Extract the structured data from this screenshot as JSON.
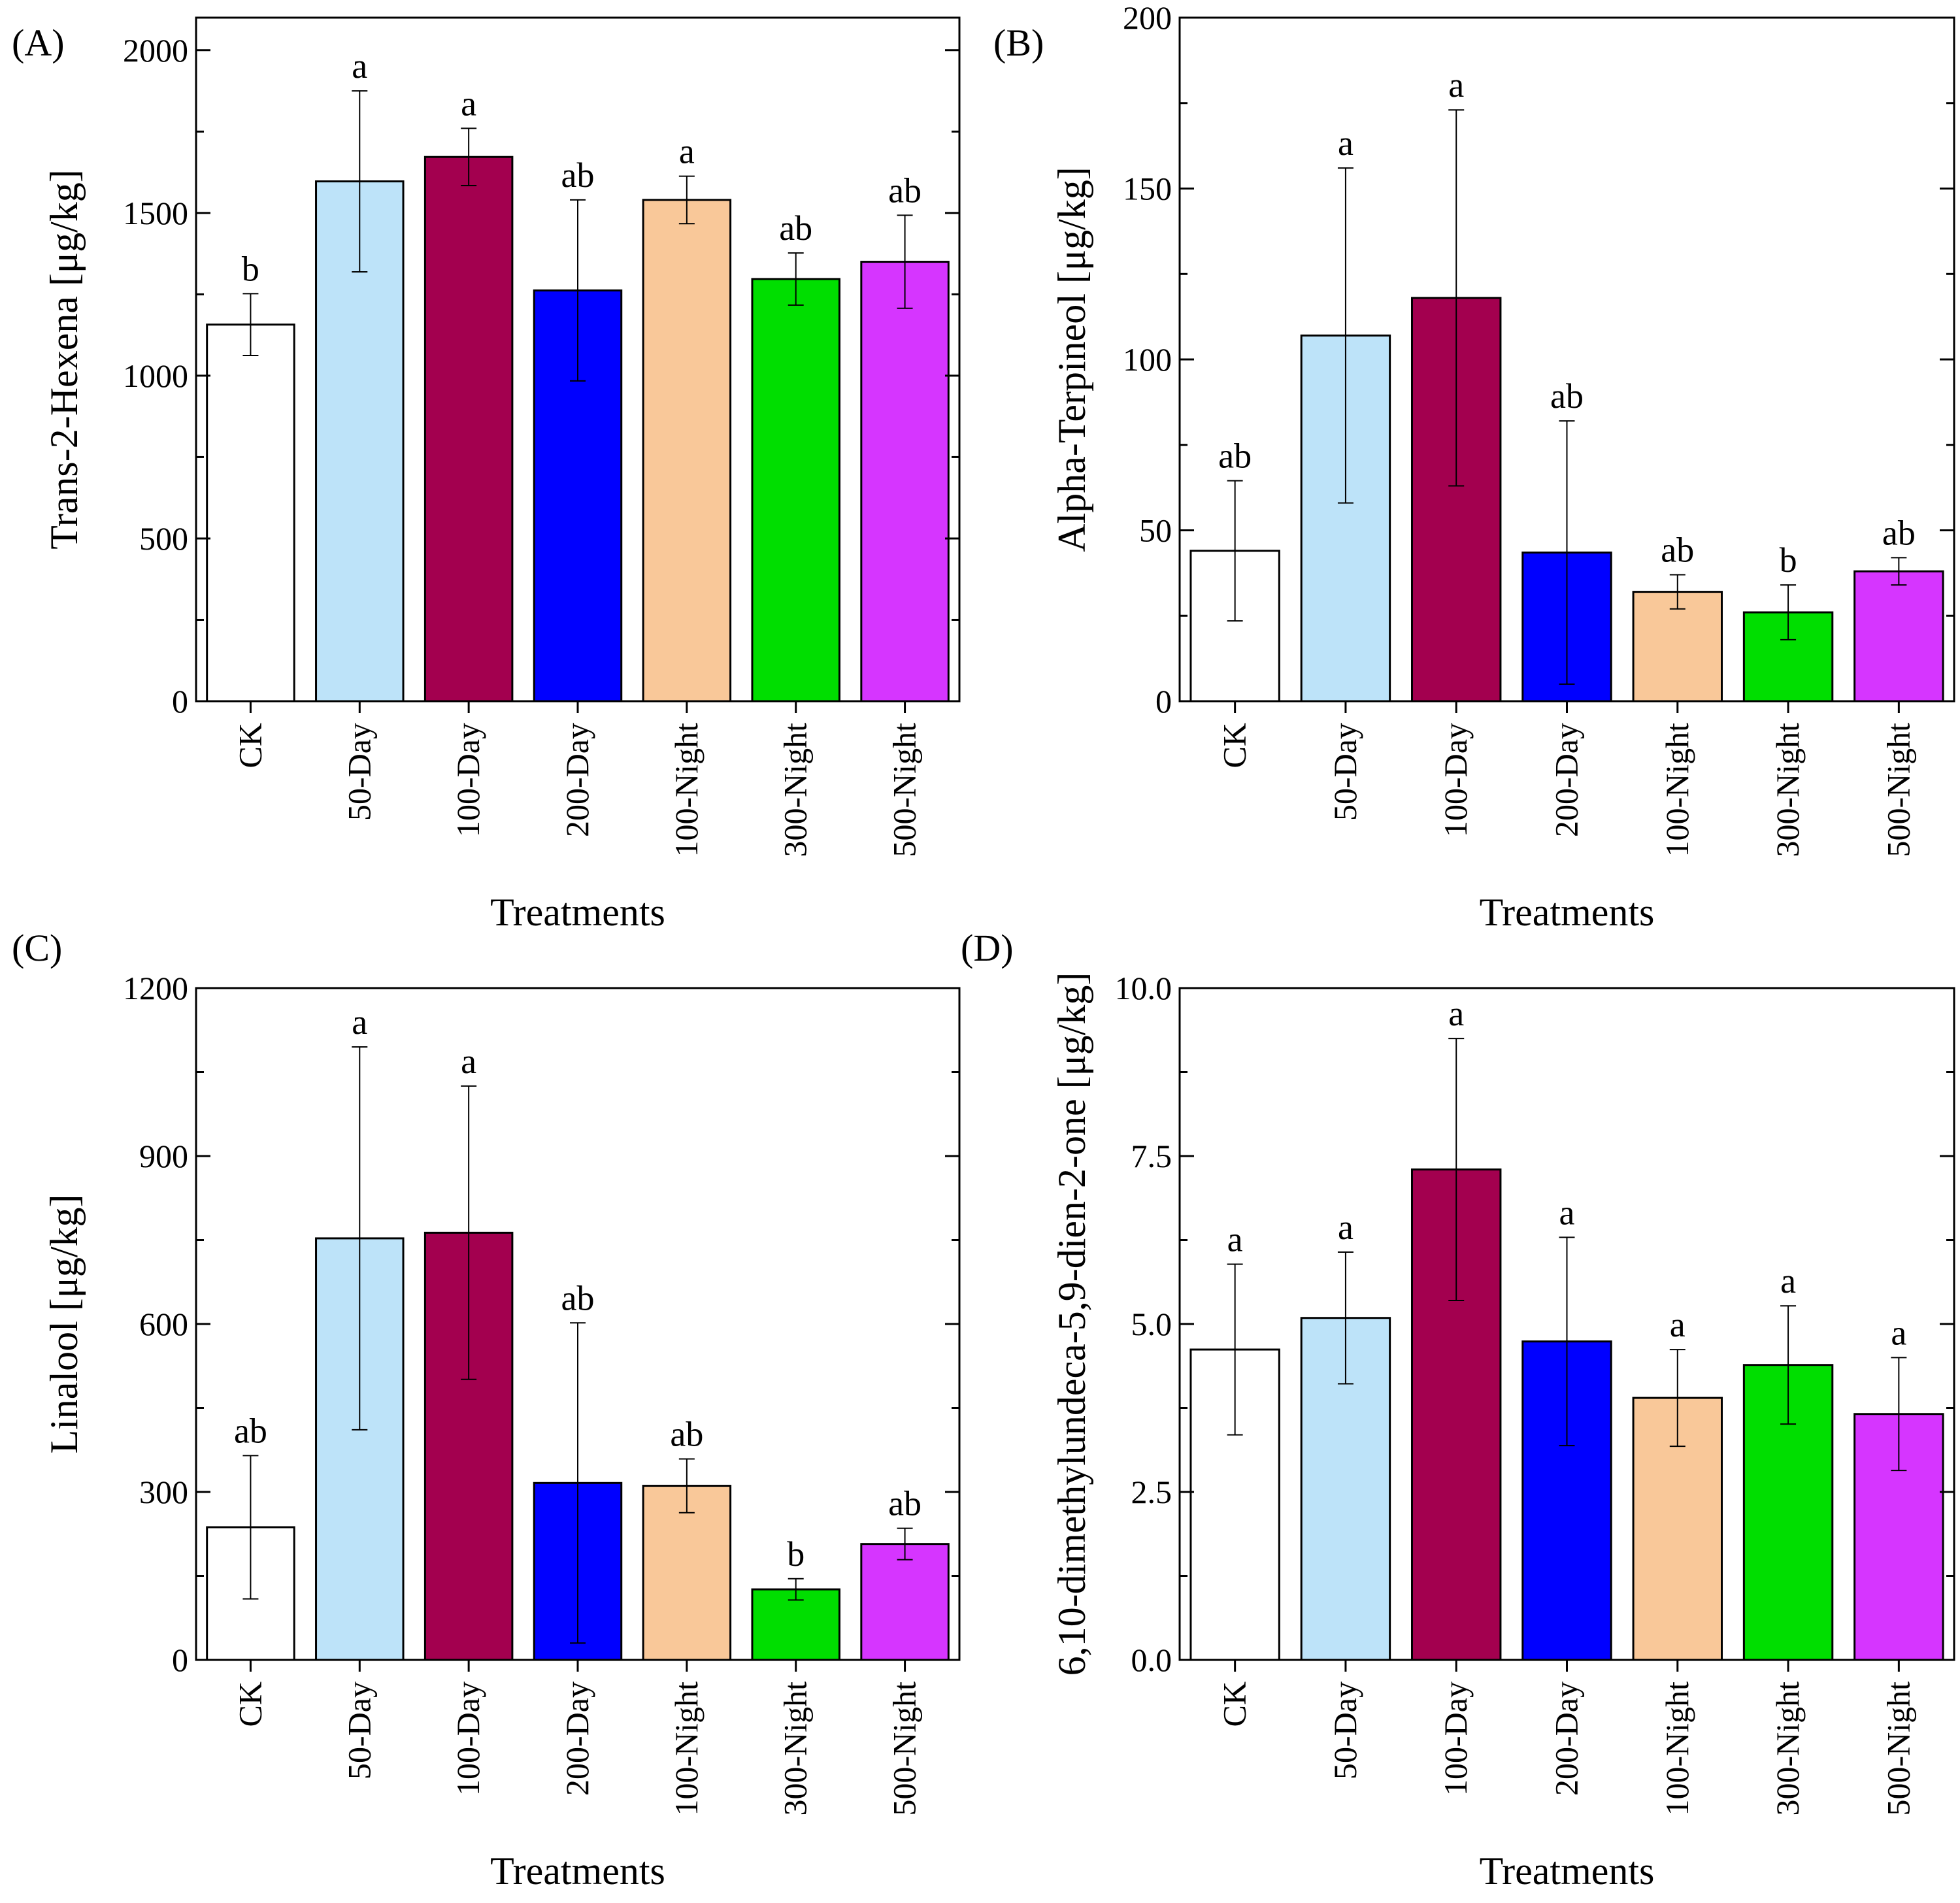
{
  "chart_data": [
    {
      "panel_label": "(A)",
      "type": "bar",
      "categories": [
        "CK",
        "50-Day",
        "100-Day",
        "200-Day",
        "100-Night",
        "300-Night",
        "500-Night"
      ],
      "values": [
        1157,
        1597,
        1672,
        1262,
        1540,
        1297,
        1350
      ],
      "errors": [
        95,
        278,
        88,
        278,
        73,
        80,
        143
      ],
      "letters": [
        "b",
        "a",
        "a",
        "ab",
        "a",
        "ab",
        "ab"
      ],
      "ylabel": "Trans-2-Hexena [μg/kg]",
      "xlabel": "Treatments",
      "ylim": [
        0,
        2100
      ],
      "yticks": [
        0,
        500,
        1000,
        1500,
        2000
      ],
      "ytick_labels": [
        "0",
        "500",
        "1000",
        "1500",
        "2000"
      ]
    },
    {
      "panel_label": "(B)",
      "type": "bar",
      "categories": [
        "CK",
        "50-Day",
        "100-Day",
        "200-Day",
        "100-Night",
        "300-Night",
        "500-Night"
      ],
      "values": [
        44,
        107,
        118,
        43.5,
        32,
        26,
        38
      ],
      "errors": [
        20.5,
        49,
        55,
        38.5,
        5,
        8,
        4
      ],
      "letters": [
        "ab",
        "a",
        "a",
        "ab",
        "ab",
        "b",
        "ab"
      ],
      "ylabel": "Alpha-Terpineol [μg/kg]",
      "xlabel": "Treatments",
      "ylim": [
        0,
        200
      ],
      "yticks": [
        0,
        50,
        100,
        150,
        200
      ],
      "ytick_labels": [
        "0",
        "50",
        "100",
        "150",
        "200"
      ]
    },
    {
      "panel_label": "(C)",
      "type": "bar",
      "categories": [
        "CK",
        "50-Day",
        "100-Day",
        "200-Day",
        "100-Night",
        "300-Night",
        "500-Night"
      ],
      "values": [
        237,
        753,
        763,
        316,
        311,
        126,
        207
      ],
      "errors": [
        128,
        342,
        262,
        286,
        48,
        19,
        28
      ],
      "letters": [
        "ab",
        "a",
        "a",
        "ab",
        "ab",
        "b",
        "ab"
      ],
      "ylabel": "Linalool  [μg/kg]",
      "xlabel": "Treatments",
      "ylim": [
        0,
        1200
      ],
      "yticks": [
        0,
        300,
        600,
        900,
        1200
      ],
      "ytick_labels": [
        "0",
        "300",
        "600",
        "900",
        "1200"
      ]
    },
    {
      "panel_label": "(D)",
      "type": "bar",
      "categories": [
        "CK",
        "50-Day",
        "100-Day",
        "200-Day",
        "100-Night",
        "300-Night",
        "500-Night"
      ],
      "values": [
        4.62,
        5.09,
        7.3,
        4.74,
        3.9,
        4.39,
        3.66
      ],
      "errors": [
        1.27,
        0.98,
        1.95,
        1.55,
        0.72,
        0.88,
        0.84
      ],
      "letters": [
        "a",
        "a",
        "a",
        "a",
        "a",
        "a",
        "a"
      ],
      "ylabel": "6,10-dimethylundeca-5,9-dien-2-one [μg/kg]",
      "xlabel": "Treatments",
      "ylim": [
        0,
        10
      ],
      "yticks": [
        0,
        2.5,
        5,
        7.5,
        10
      ],
      "ytick_labels": [
        "0.0",
        "2.5",
        "5.0",
        "7.5",
        "10.0"
      ]
    }
  ],
  "colors": [
    "#ffffff",
    "#bde3f9",
    "#a3004f",
    "#0000ff",
    "#f9c899",
    "#00de00",
    "#d635ff"
  ]
}
